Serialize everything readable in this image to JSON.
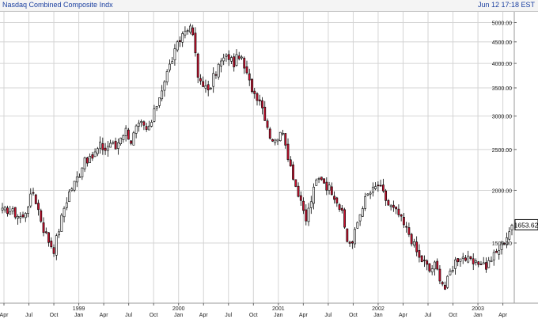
{
  "header": {
    "title": "Nasdaq Combined Composite Indx",
    "timestamp": "Jun 12 17:18 EST"
  },
  "colors": {
    "down_candle": "#c8102e",
    "up_candle": "#ffffff",
    "candle_outline": "#000000",
    "grid": "#d4d4d4",
    "title_text": "#1a3fa0"
  },
  "chart_data": {
    "type": "candlestick",
    "title": "Nasdaq Combined Composite Indx",
    "y_scale": "log",
    "ylim": [
      1080,
      5300
    ],
    "grid": true,
    "last_price_label": "1653.62",
    "y_ticks": [
      {
        "value": 5000,
        "label": "5000.00"
      },
      {
        "value": 4500,
        "label": "4500.00"
      },
      {
        "value": 4000,
        "label": "4000.00"
      },
      {
        "value": 3500,
        "label": "3500.00"
      },
      {
        "value": 3000,
        "label": "3000.00"
      },
      {
        "value": 2500,
        "label": "2500.00"
      },
      {
        "value": 2000,
        "label": "2000.00"
      },
      {
        "value": 1500,
        "label": "1500.00"
      }
    ],
    "x_ticks": [
      {
        "label": "Apr",
        "year_label": ""
      },
      {
        "label": "Jul",
        "year_label": ""
      },
      {
        "label": "Oct",
        "year_label": ""
      },
      {
        "label": "Jan",
        "year_label": "1999"
      },
      {
        "label": "Apr",
        "year_label": ""
      },
      {
        "label": "Jul",
        "year_label": ""
      },
      {
        "label": "Oct",
        "year_label": ""
      },
      {
        "label": "Jan",
        "year_label": "2000"
      },
      {
        "label": "Apr",
        "year_label": ""
      },
      {
        "label": "Jul",
        "year_label": ""
      },
      {
        "label": "Oct",
        "year_label": ""
      },
      {
        "label": "Jan",
        "year_label": "2001"
      },
      {
        "label": "Apr",
        "year_label": ""
      },
      {
        "label": "Jul",
        "year_label": ""
      },
      {
        "label": "Oct",
        "year_label": ""
      },
      {
        "label": "Jan",
        "year_label": "2002"
      },
      {
        "label": "Apr",
        "year_label": ""
      },
      {
        "label": "Jul",
        "year_label": ""
      },
      {
        "label": "Oct",
        "year_label": ""
      },
      {
        "label": "Jan",
        "year_label": "2003"
      },
      {
        "label": "Apr",
        "year_label": ""
      }
    ],
    "series_anchors": [
      [
        0,
        1780
      ],
      [
        2,
        1800
      ],
      [
        5,
        1760
      ],
      [
        8,
        1720
      ],
      [
        10,
        1860
      ],
      [
        12,
        1980
      ],
      [
        14,
        1800
      ],
      [
        16,
        1620
      ],
      [
        18,
        1520
      ],
      [
        20,
        1450
      ],
      [
        22,
        1620
      ],
      [
        24,
        1820
      ],
      [
        26,
        1980
      ],
      [
        28,
        2080
      ],
      [
        30,
        2200
      ],
      [
        32,
        2400
      ],
      [
        34,
        2350
      ],
      [
        36,
        2450
      ],
      [
        38,
        2550
      ],
      [
        40,
        2500
      ],
      [
        42,
        2600
      ],
      [
        44,
        2520
      ],
      [
        46,
        2700
      ],
      [
        48,
        2780
      ],
      [
        50,
        2620
      ],
      [
        52,
        2800
      ],
      [
        54,
        2860
      ],
      [
        56,
        2760
      ],
      [
        58,
        2900
      ],
      [
        60,
        3200
      ],
      [
        62,
        3500
      ],
      [
        64,
        3800
      ],
      [
        66,
        4100
      ],
      [
        68,
        4400
      ],
      [
        70,
        4700
      ],
      [
        72,
        4900
      ],
      [
        74,
        4700
      ],
      [
        76,
        3700
      ],
      [
        78,
        3600
      ],
      [
        80,
        3400
      ],
      [
        82,
        3700
      ],
      [
        84,
        3950
      ],
      [
        86,
        4100
      ],
      [
        88,
        4150
      ],
      [
        90,
        4000
      ],
      [
        92,
        4200
      ],
      [
        94,
        3900
      ],
      [
        96,
        3600
      ],
      [
        98,
        3400
      ],
      [
        100,
        3300
      ],
      [
        102,
        3000
      ],
      [
        104,
        2700
      ],
      [
        106,
        2600
      ],
      [
        108,
        2800
      ],
      [
        110,
        2550
      ],
      [
        112,
        2300
      ],
      [
        114,
        2050
      ],
      [
        116,
        1850
      ],
      [
        118,
        1700
      ],
      [
        120,
        1900
      ],
      [
        122,
        2100
      ],
      [
        124,
        2150
      ],
      [
        126,
        2050
      ],
      [
        128,
        2000
      ],
      [
        130,
        1900
      ],
      [
        132,
        1750
      ],
      [
        134,
        1520
      ],
      [
        136,
        1500
      ],
      [
        138,
        1680
      ],
      [
        140,
        1850
      ],
      [
        142,
        1950
      ],
      [
        144,
        2000
      ],
      [
        146,
        2060
      ],
      [
        148,
        1960
      ],
      [
        150,
        1850
      ],
      [
        152,
        1800
      ],
      [
        154,
        1750
      ],
      [
        156,
        1650
      ],
      [
        158,
        1580
      ],
      [
        160,
        1480
      ],
      [
        162,
        1380
      ],
      [
        164,
        1350
      ],
      [
        166,
        1290
      ],
      [
        168,
        1330
      ],
      [
        170,
        1250
      ],
      [
        172,
        1170
      ],
      [
        174,
        1280
      ],
      [
        176,
        1360
      ],
      [
        178,
        1400
      ],
      [
        180,
        1380
      ],
      [
        182,
        1350
      ],
      [
        184,
        1330
      ],
      [
        186,
        1360
      ],
      [
        188,
        1320
      ],
      [
        190,
        1380
      ],
      [
        192,
        1420
      ],
      [
        194,
        1480
      ],
      [
        196,
        1560
      ],
      [
        198,
        1653.62
      ]
    ]
  }
}
